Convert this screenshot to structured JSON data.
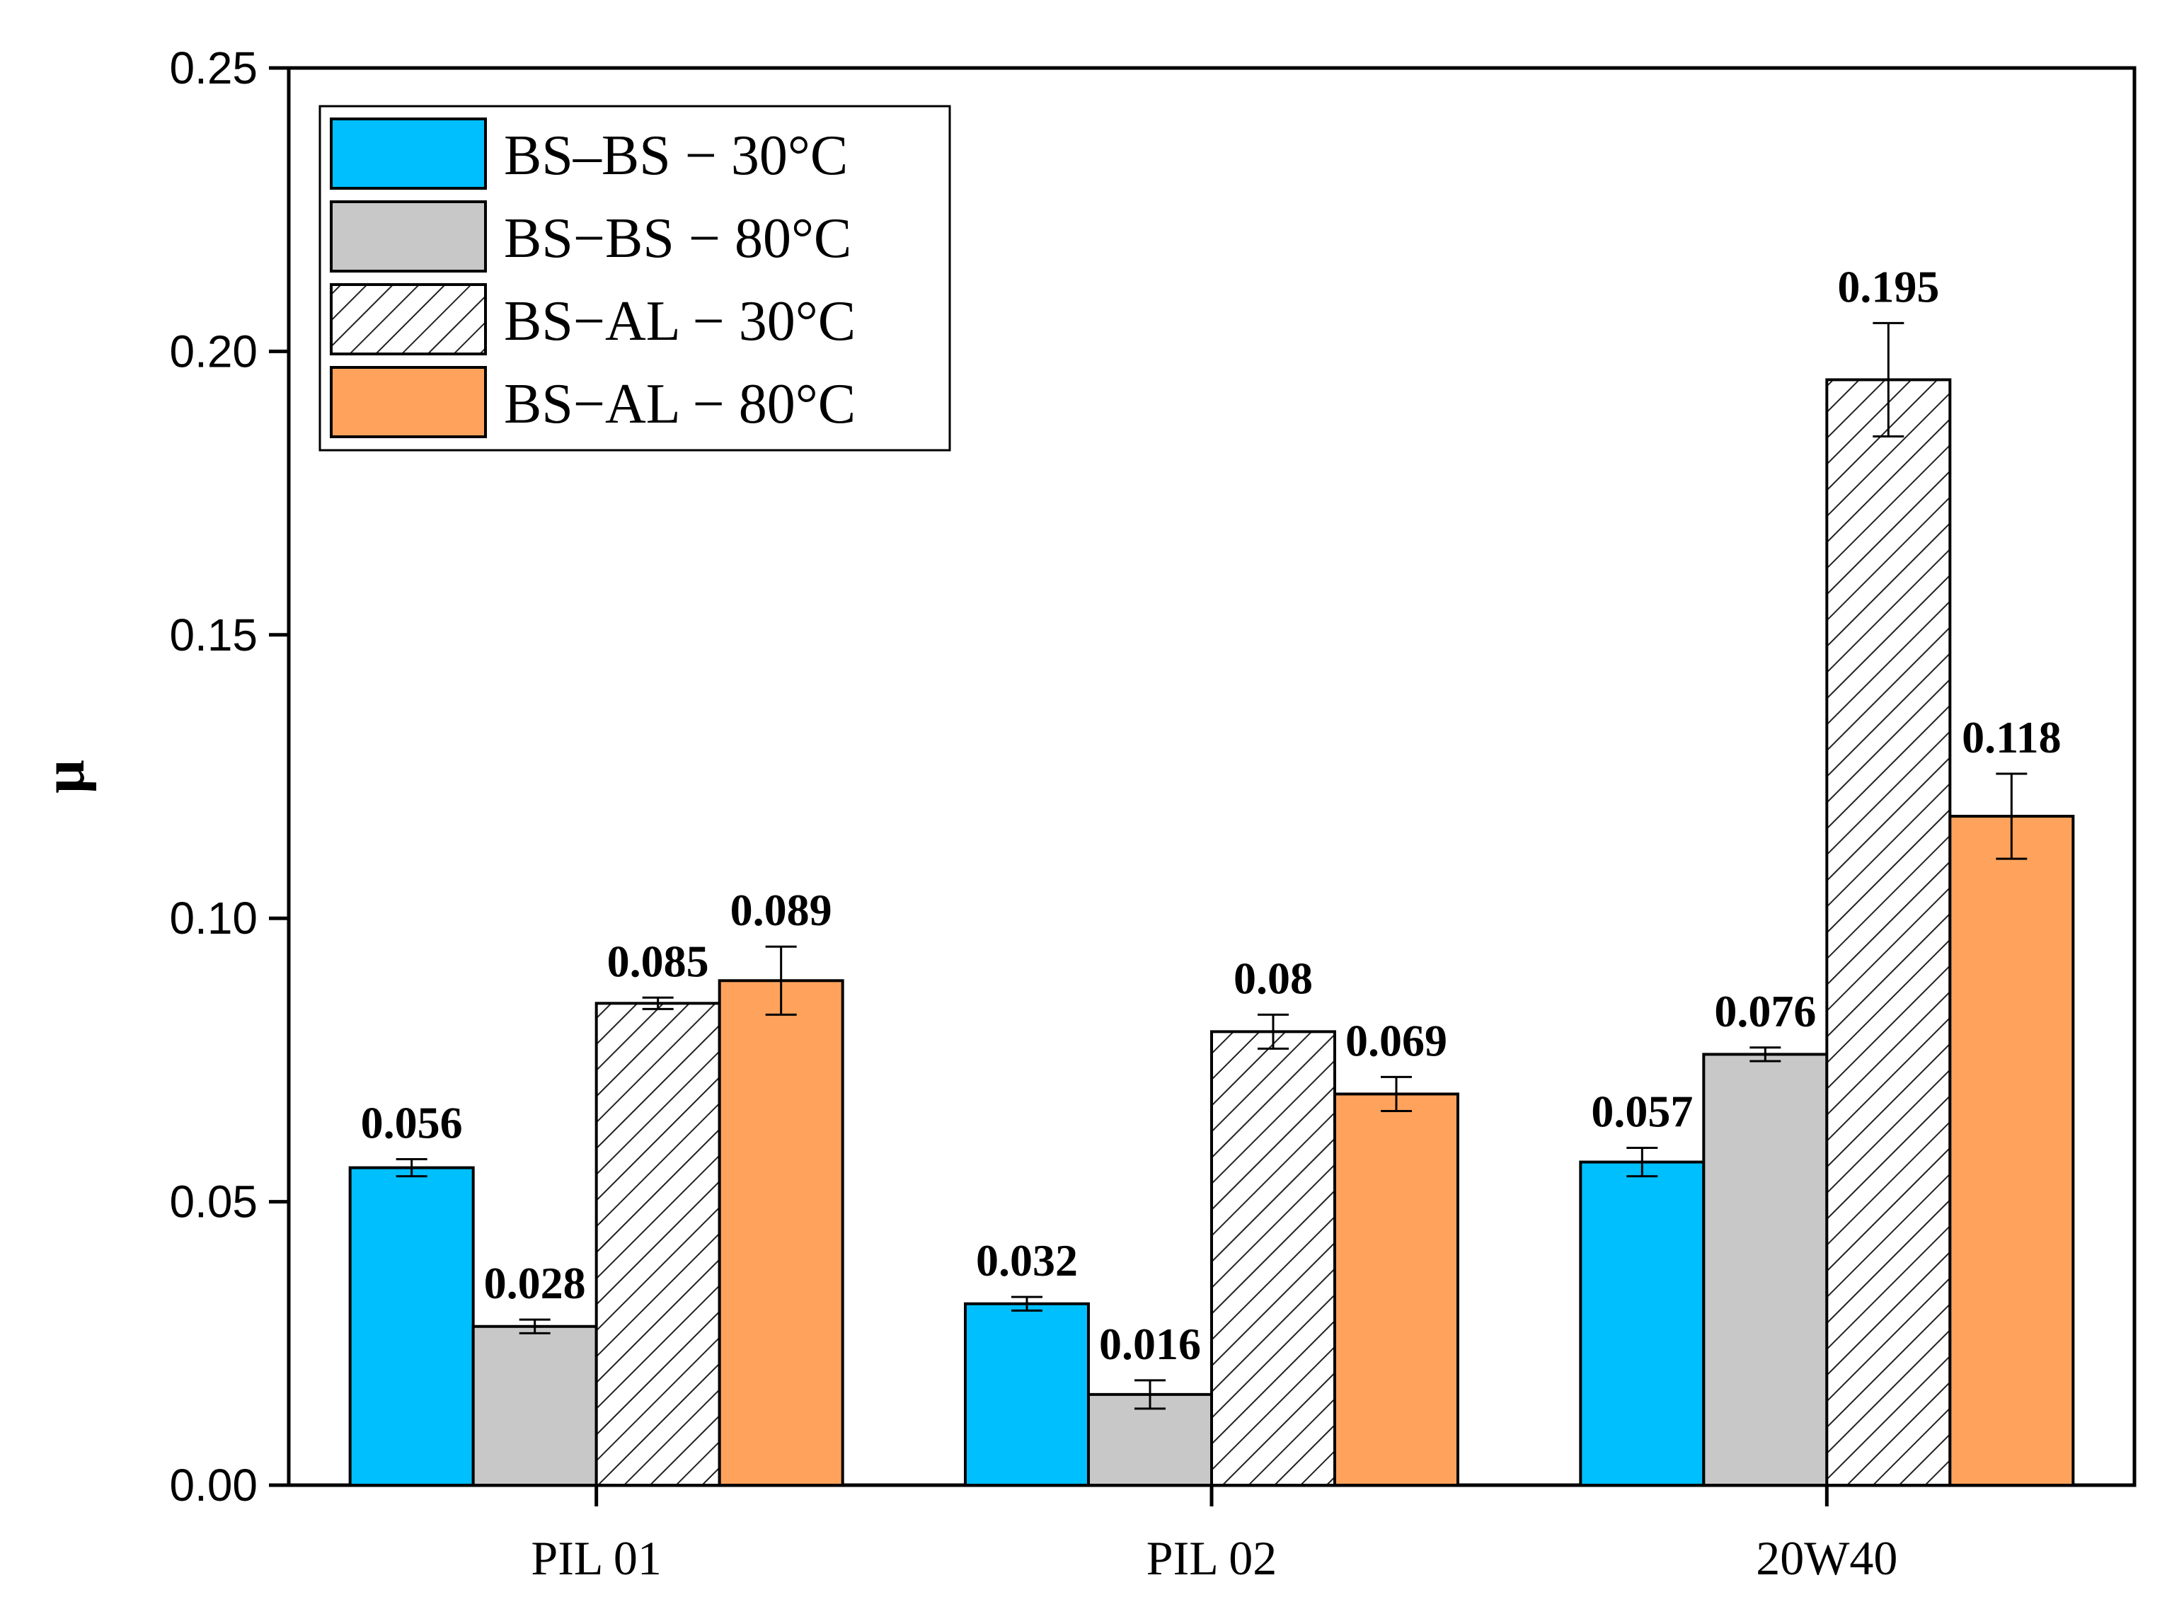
{
  "chart_data": {
    "type": "bar",
    "title": "",
    "xlabel": "",
    "ylabel": "μ",
    "ylim": [
      0,
      0.25
    ],
    "yticks": [
      "0.00",
      "0.05",
      "0.10",
      "0.15",
      "0.20",
      "0.25"
    ],
    "categories": [
      "PIL 01",
      "PIL 02",
      "20W40"
    ],
    "legend_position": "top-left",
    "grid": false,
    "series": [
      {
        "name": "BS–BS − 30°C",
        "color": "#00bfff",
        "pattern": "solid",
        "values": [
          0.056,
          0.032,
          0.057
        ],
        "errors": [
          0.0015,
          0.0012,
          0.0025
        ],
        "labels": [
          "0.056",
          "0.032",
          "0.057"
        ]
      },
      {
        "name": "BS−BS − 80°C",
        "color": "#c8c8c8",
        "pattern": "solid",
        "values": [
          0.028,
          0.016,
          0.076
        ],
        "errors": [
          0.0012,
          0.0025,
          0.0012
        ],
        "labels": [
          "0.028",
          "0.016",
          "0.076"
        ]
      },
      {
        "name": "BS−AL − 30°C",
        "color": "#ffffff",
        "pattern": "hatch",
        "values": [
          0.085,
          0.08,
          0.195
        ],
        "errors": [
          0.001,
          0.003,
          0.01
        ],
        "labels": [
          "0.085",
          "0.08",
          "0.195"
        ]
      },
      {
        "name": "BS−AL − 80°C",
        "color": "#ffa35c",
        "pattern": "solid",
        "values": [
          0.089,
          0.069,
          0.118
        ],
        "errors": [
          0.006,
          0.003,
          0.0075
        ],
        "labels": [
          "0.089",
          "0.069",
          "0.118"
        ]
      }
    ]
  }
}
